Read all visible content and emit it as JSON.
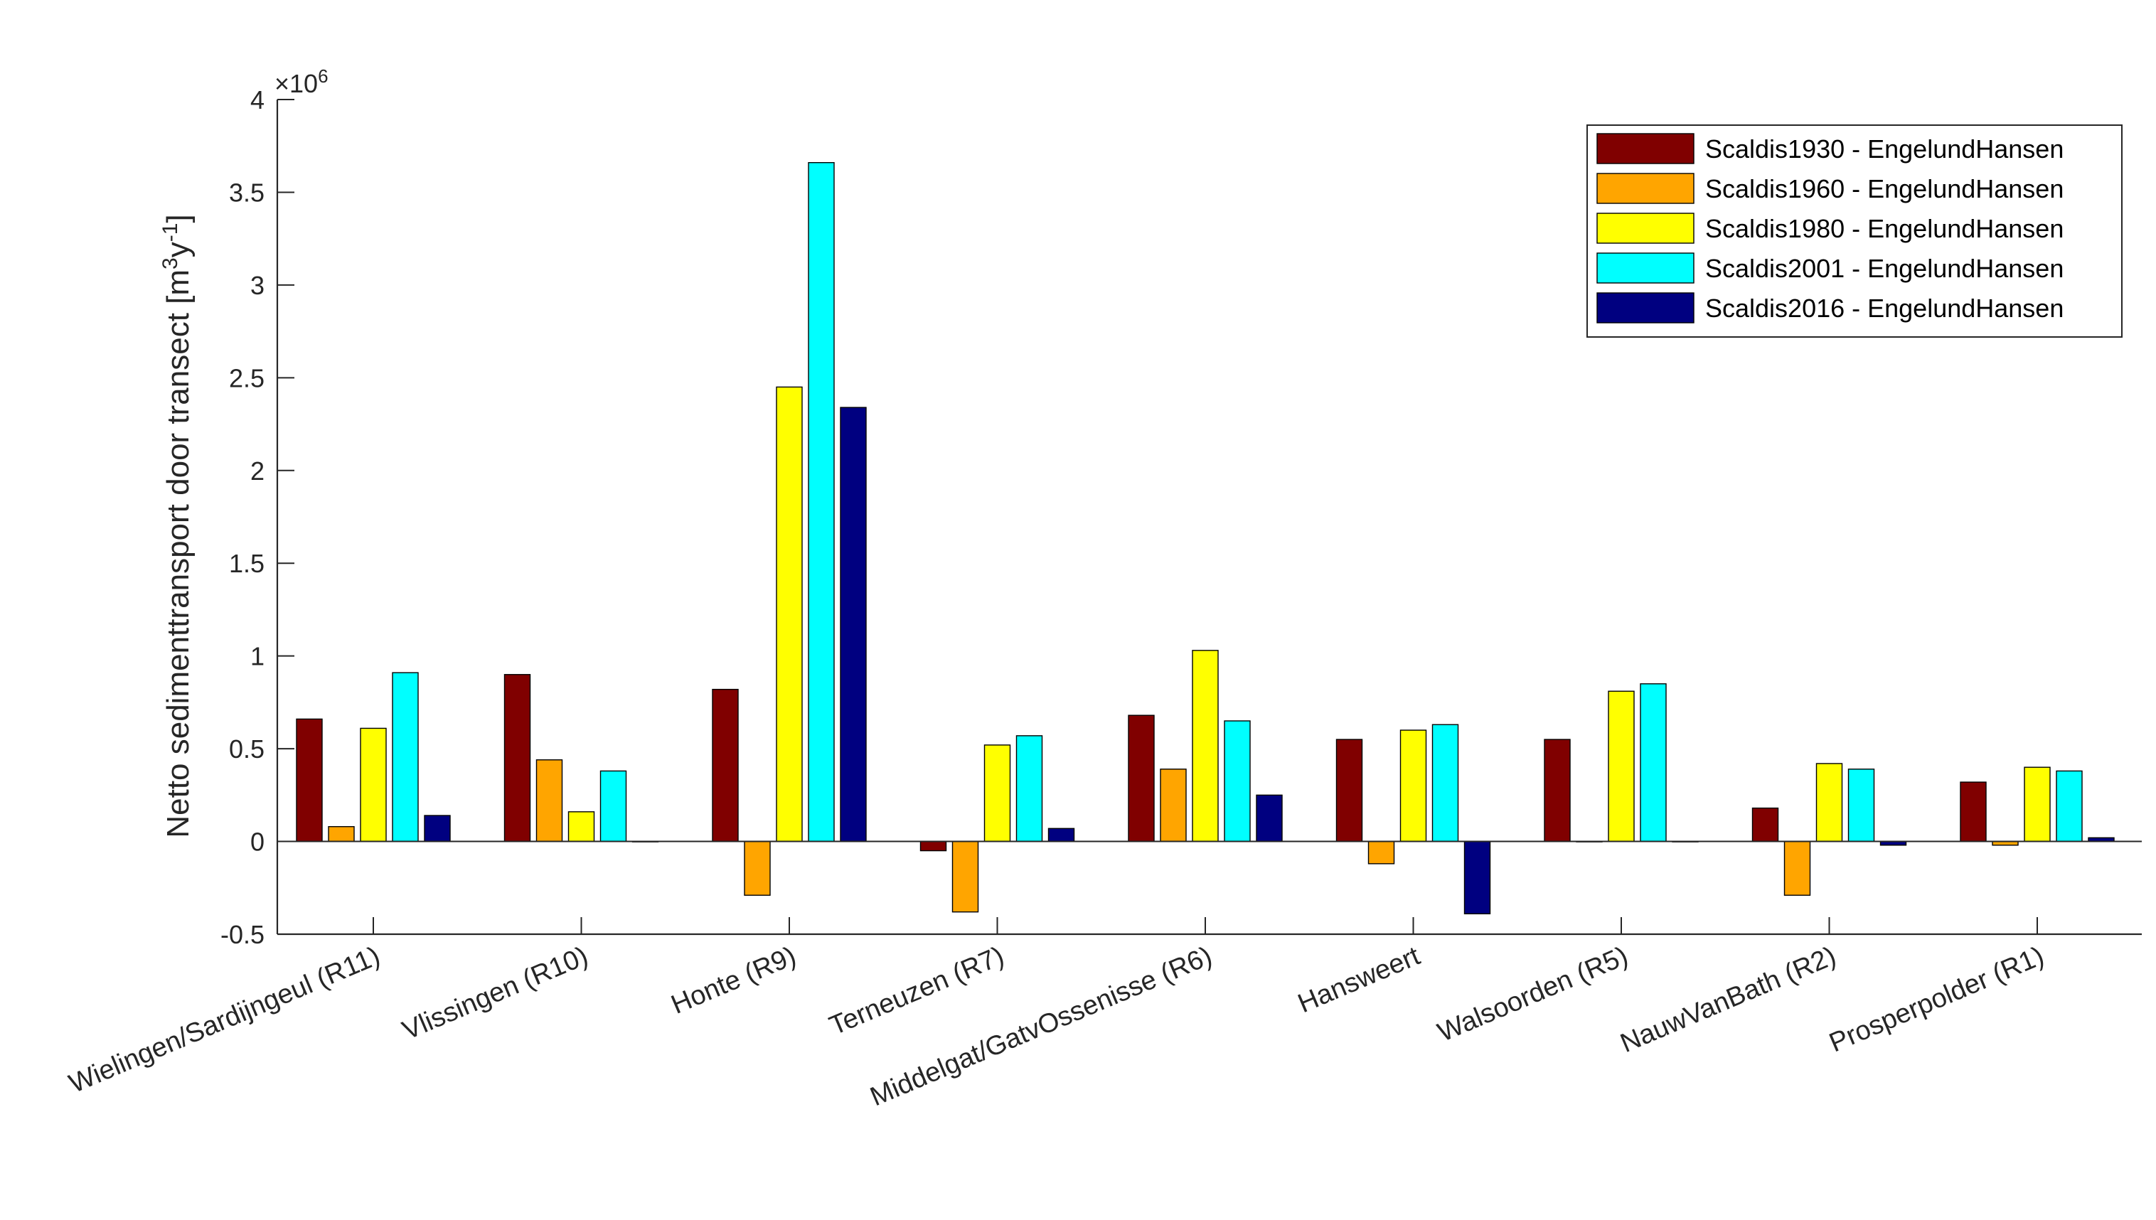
{
  "chart_data": {
    "type": "bar",
    "categories": [
      "Wielingen/Sardijngeul (R11)",
      "Vlissingen (R10)",
      "Honte (R9)",
      "Terneuzen (R7)",
      "Middelgat/GatvOssenisse (R6)",
      "Hansweert",
      "Walsoorden (R5)",
      "NauwVanBath (R2)",
      "Prosperpolder (R1)"
    ],
    "series": [
      {
        "name": "Scaldis1930 - EngelundHansen",
        "color": "#800000",
        "values": [
          660000,
          900000,
          820000,
          -50000,
          680000,
          550000,
          550000,
          180000,
          320000
        ]
      },
      {
        "name": "Scaldis1960 - EngelundHansen",
        "color": "#FFA500",
        "values": [
          80000,
          440000,
          -290000,
          -380000,
          390000,
          -120000,
          0,
          -290000,
          -20000
        ]
      },
      {
        "name": "Scaldis1980 - EngelundHansen",
        "color": "#FFFF00",
        "values": [
          610000,
          160000,
          2450000,
          520000,
          1030000,
          600000,
          810000,
          420000,
          400000
        ]
      },
      {
        "name": "Scaldis2001 - EngelundHansen",
        "color": "#00FFFF",
        "values": [
          910000,
          380000,
          3660000,
          570000,
          650000,
          630000,
          850000,
          390000,
          380000
        ]
      },
      {
        "name": "Scaldis2016 - EngelundHansen",
        "color": "#000080",
        "values": [
          140000,
          0,
          2340000,
          70000,
          250000,
          -390000,
          0,
          -20000,
          20000
        ]
      }
    ],
    "ylim": [
      -500000,
      4000000
    ],
    "yticks": [
      -500000,
      0,
      500000,
      1000000,
      1500000,
      2000000,
      2500000,
      3000000,
      3500000,
      4000000
    ],
    "ytick_labels": [
      "-0.5",
      "0",
      "0.5",
      "1",
      "1.5",
      "2",
      "2.5",
      "3",
      "3.5",
      "4"
    ],
    "y_multiplier_base": "×10",
    "y_multiplier_exponent": "6",
    "ylabel_main": "Netto sedimenttransport door transect [m",
    "ylabel_sup1": "3",
    "ylabel_mid": "y",
    "ylabel_sup2": "-1",
    "ylabel_end": "]",
    "xlabel": "",
    "legend_position": "top-right",
    "grid": false
  }
}
